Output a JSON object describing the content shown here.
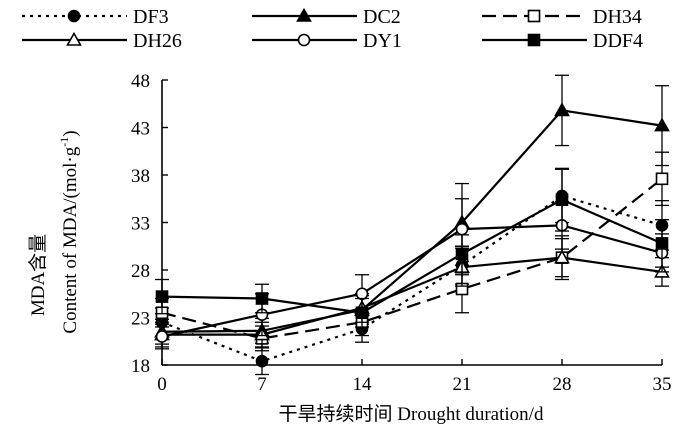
{
  "chart_data": {
    "type": "line",
    "xlabel": "干旱持续时间 Drought duration/d",
    "ylabel_cn": "MDA含量",
    "ylabel_en": "Content of MDA/(mol·g",
    "ylabel_sup": "-1",
    "ylabel_close": ")",
    "x": [
      0,
      7,
      14,
      21,
      28,
      35
    ],
    "x_tick_labels": [
      "0",
      "7",
      "14",
      "21",
      "28",
      "35"
    ],
    "y_ticks": [
      18,
      23,
      28,
      33,
      38,
      43,
      48
    ],
    "y_tick_labels": [
      "18",
      "23",
      "28",
      "33",
      "38",
      "43",
      "48"
    ],
    "ylim": [
      18,
      48
    ],
    "legend_position": "top",
    "grid": false,
    "series": [
      {
        "name": "DF3",
        "line_style": "dotted",
        "marker": "circle-filled",
        "values": [
          22.5,
          18.4,
          21.8,
          28.5,
          35.8,
          32.7
        ],
        "errors": [
          1.5,
          1.4,
          1.4,
          2.0,
          2.8,
          2.6
        ]
      },
      {
        "name": "DC2",
        "line_style": "solid",
        "marker": "triangle-filled",
        "values": [
          21.5,
          21.6,
          23.8,
          33.0,
          44.8,
          43.2
        ],
        "errors": [
          1.3,
          1.3,
          1.5,
          2.5,
          3.7,
          4.2
        ]
      },
      {
        "name": "DH34",
        "line_style": "dashed",
        "marker": "square-open",
        "values": [
          23.5,
          20.8,
          22.5,
          26.0,
          29.3,
          37.6
        ],
        "errors": [
          1.5,
          1.3,
          1.4,
          2.5,
          2.3,
          2.8
        ]
      },
      {
        "name": "DH26",
        "line_style": "solid",
        "marker": "triangle-open",
        "values": [
          21.2,
          21.2,
          24.0,
          28.3,
          29.3,
          27.8
        ],
        "errors": [
          1.3,
          1.3,
          1.5,
          2.0,
          2.0,
          1.5
        ]
      },
      {
        "name": "DY1",
        "line_style": "solid",
        "marker": "circle-open",
        "values": [
          21.0,
          23.3,
          25.5,
          32.3,
          32.7,
          29.8
        ],
        "errors": [
          1.3,
          2.2,
          2.0,
          4.8,
          2.5,
          2.0
        ]
      },
      {
        "name": "DDF4",
        "line_style": "solid",
        "marker": "square-filled",
        "values": [
          25.2,
          25.0,
          23.5,
          29.7,
          35.4,
          30.8
        ],
        "errors": [
          1.8,
          1.5,
          1.5,
          2.0,
          3.3,
          2.5
        ]
      }
    ]
  }
}
